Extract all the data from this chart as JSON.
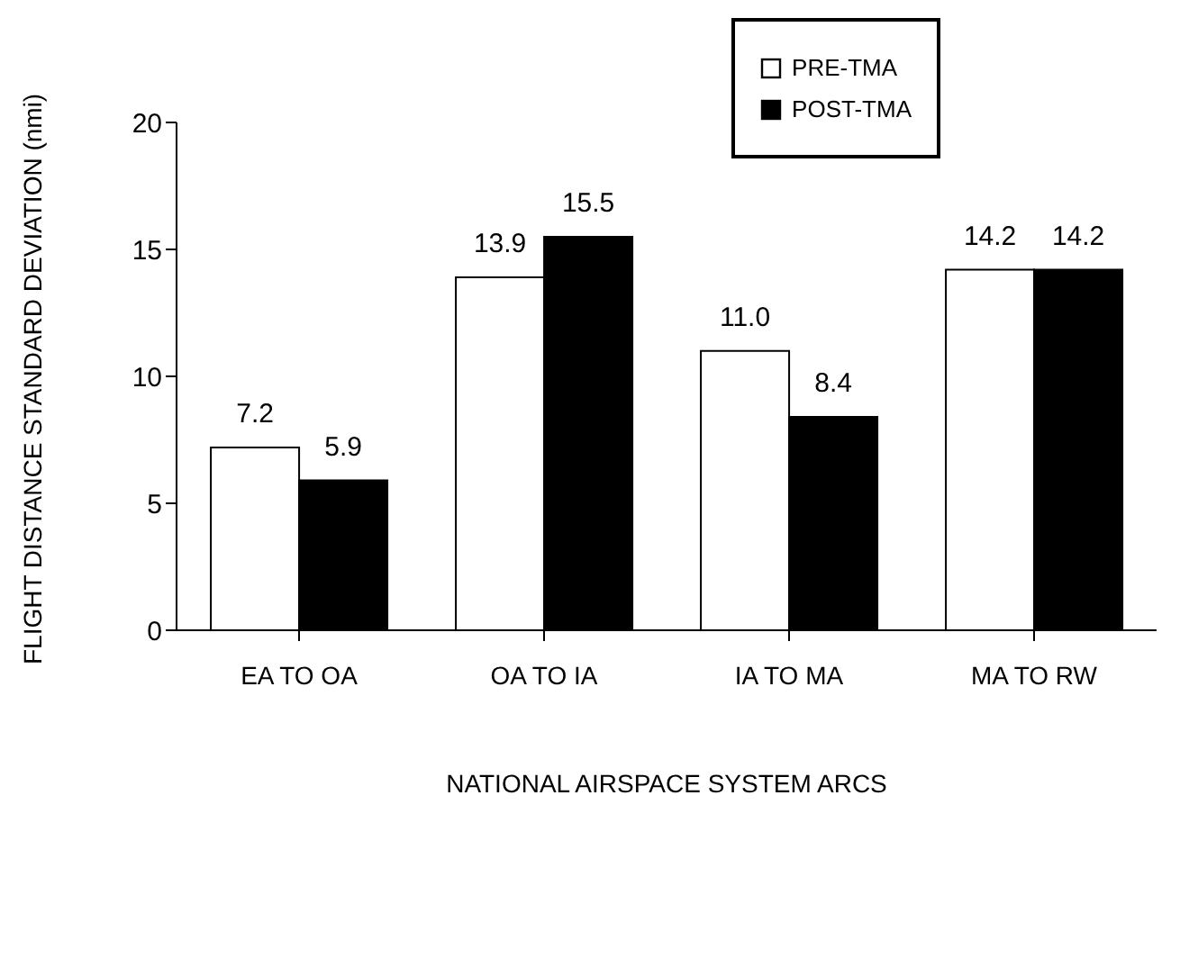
{
  "chart_data": {
    "type": "bar",
    "xlabel": "NATIONAL AIRSPACE SYSTEM ARCS",
    "ylabel": "FLIGHT DISTANCE STANDARD DEVIATION (nmi)",
    "categories": [
      "EA TO OA",
      "OA TO IA",
      "IA TO MA",
      "MA TO RW"
    ],
    "series": [
      {
        "name": "PRE-TMA",
        "color": "#ffffff",
        "values": [
          7.2,
          13.9,
          11.0,
          14.2
        ],
        "value_labels": [
          "7.2",
          "13.9",
          "11.0",
          "14.2"
        ]
      },
      {
        "name": "POST-TMA",
        "color": "#000000",
        "values": [
          5.9,
          15.5,
          8.4,
          14.2
        ],
        "value_labels": [
          "5.9",
          "15.5",
          "8.4",
          "14.2"
        ]
      }
    ],
    "ylim": [
      0,
      20
    ],
    "yticks": [
      0,
      5,
      10,
      15,
      20
    ],
    "legend": "top right"
  }
}
